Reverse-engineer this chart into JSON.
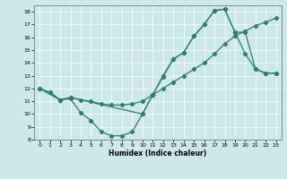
{
  "xlabel": "Humidex (Indice chaleur)",
  "xlim": [
    -0.5,
    23.5
  ],
  "ylim": [
    8,
    18.5
  ],
  "xticks": [
    0,
    1,
    2,
    3,
    4,
    5,
    6,
    7,
    8,
    9,
    10,
    11,
    12,
    13,
    14,
    15,
    16,
    17,
    18,
    19,
    20,
    21,
    22,
    23
  ],
  "yticks": [
    8,
    9,
    10,
    11,
    12,
    13,
    14,
    15,
    16,
    17,
    18
  ],
  "bg_color": "#cce8e8",
  "line_color": "#2e7d6e",
  "grid_color": "#b0d0d0",
  "line1_x": [
    0,
    1,
    2,
    3,
    4,
    5,
    6,
    7,
    8,
    9,
    10,
    11,
    12,
    13,
    14,
    15,
    16,
    17,
    18,
    19,
    20,
    21,
    22,
    23
  ],
  "line1_y": [
    12,
    11.7,
    11.1,
    11.2,
    10.1,
    9.5,
    8.6,
    8.3,
    8.3,
    8.6,
    10.0,
    11.5,
    13.0,
    14.3,
    14.8,
    16.1,
    17.0,
    18.1,
    18.2,
    16.4,
    14.7,
    13.5,
    13.2,
    13.2
  ],
  "line2_x": [
    0,
    2,
    3,
    10,
    11,
    12,
    13,
    14,
    15,
    16,
    17,
    18,
    19,
    20,
    21,
    22,
    23
  ],
  "line2_y": [
    12,
    11.1,
    11.3,
    10.0,
    11.5,
    12.9,
    14.3,
    14.8,
    16.1,
    17.0,
    18.1,
    18.2,
    16.4,
    16.4,
    13.5,
    13.2,
    13.2
  ],
  "line3_x": [
    0,
    1,
    2,
    3,
    4,
    5,
    6,
    7,
    8,
    9,
    10,
    11,
    12,
    13,
    14,
    15,
    16,
    17,
    18,
    19,
    20,
    21,
    22,
    23
  ],
  "line3_y": [
    12,
    11.7,
    11.1,
    11.3,
    11.1,
    11.0,
    10.8,
    10.7,
    10.7,
    10.8,
    11.0,
    11.5,
    12.0,
    12.5,
    13.0,
    13.5,
    14.0,
    14.7,
    15.5,
    16.1,
    16.5,
    16.9,
    17.2,
    17.5
  ]
}
